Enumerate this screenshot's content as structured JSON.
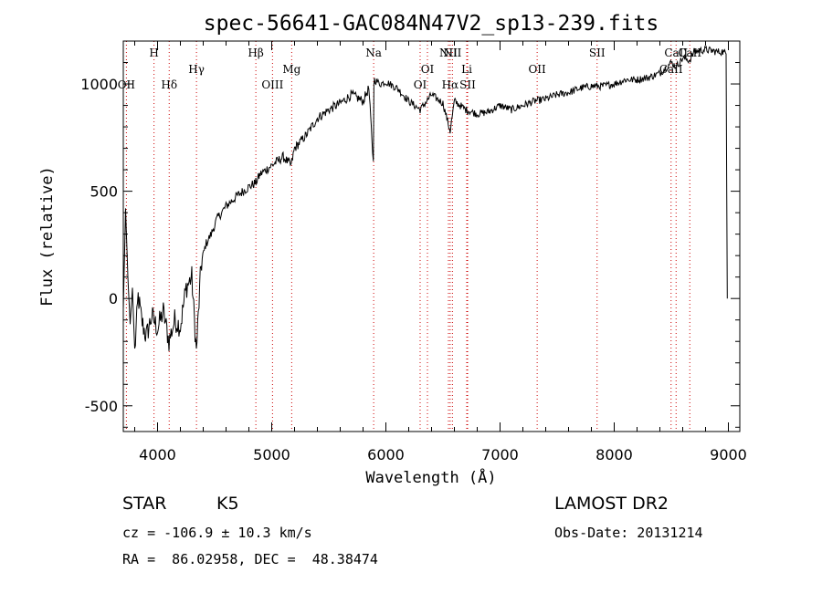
{
  "chart_data": {
    "type": "line",
    "title": "spec-56641-GAC084N47V2_sp13-239.fits",
    "xlabel": "Wavelength (Å)",
    "ylabel": "Flux (relative)",
    "xlim": [
      3700,
      9100
    ],
    "ylim": [
      -620,
      1200
    ],
    "xticks": [
      4000,
      5000,
      6000,
      7000,
      8000,
      9000
    ],
    "xtick_labels": [
      "4000",
      "5000",
      "6000",
      "7000",
      "8000",
      "9000"
    ],
    "yticks": [
      -500,
      0,
      500,
      1000
    ],
    "ytick_labels": [
      "-500",
      "0",
      "500",
      "1000"
    ],
    "grid": false,
    "series": [
      {
        "x": [
          3700,
          3720,
          3740,
          3760,
          3780,
          3800,
          3830,
          3860,
          3900,
          3950,
          4000,
          4050,
          4100,
          4150,
          4200,
          4250,
          4300,
          4340,
          4380,
          4420,
          4470,
          4520,
          4600,
          4700,
          4800,
          4860,
          4900,
          5000,
          5100,
          5170,
          5200,
          5300,
          5400,
          5500,
          5600,
          5700,
          5800,
          5850,
          5890,
          5895,
          5900,
          5950,
          6000,
          6100,
          6200,
          6300,
          6400,
          6500,
          6563,
          6600,
          6700,
          6800,
          6900,
          7000,
          7100,
          7200,
          7300,
          7400,
          7500,
          7600,
          7700,
          7800,
          7900,
          8000,
          8100,
          8200,
          8300,
          8400,
          8500,
          8542,
          8600,
          8662,
          8700,
          8800,
          8900,
          8950,
          8980,
          8990
        ],
        "y": [
          -50,
          420,
          100,
          -120,
          50,
          -250,
          10,
          -100,
          -180,
          -80,
          -140,
          -60,
          -200,
          -100,
          -130,
          50,
          100,
          -250,
          150,
          250,
          300,
          370,
          430,
          480,
          520,
          540,
          580,
          620,
          660,
          620,
          700,
          760,
          840,
          880,
          910,
          950,
          920,
          980,
          640,
          1000,
          1020,
          1000,
          1010,
          980,
          920,
          880,
          950,
          910,
          780,
          920,
          880,
          860,
          870,
          900,
          880,
          900,
          920,
          930,
          950,
          960,
          980,
          990,
          990,
          1000,
          1020,
          1020,
          1030,
          1050,
          1100,
          1080,
          1120,
          1110,
          1150,
          1160,
          1150,
          1150,
          1140,
          0
        ]
      }
    ],
    "lines": [
      {
        "name": "OII",
        "wave": 3727,
        "row": 2
      },
      {
        "name": "H",
        "wave": 3969,
        "row": 0
      },
      {
        "name": "Hδ",
        "wave": 4102,
        "row": 2
      },
      {
        "name": "Hγ",
        "wave": 4341,
        "row": 1
      },
      {
        "name": "Hβ",
        "wave": 4861,
        "row": 0
      },
      {
        "name": "OIII",
        "wave": 5007,
        "row": 2
      },
      {
        "name": "Mg",
        "wave": 5175,
        "row": 1
      },
      {
        "name": "Na",
        "wave": 5893,
        "row": 0
      },
      {
        "name": "OI",
        "wave": 6300,
        "row": 2
      },
      {
        "name": "OI",
        "wave": 6364,
        "row": 1
      },
      {
        "name": "NII",
        "wave": 6548,
        "row": 0
      },
      {
        "name": "Hα",
        "wave": 6563,
        "row": 2
      },
      {
        "name": "NII",
        "wave": 6583,
        "row": 0
      },
      {
        "name": "Li",
        "wave": 6708,
        "row": 1
      },
      {
        "name": "SII",
        "wave": 6716,
        "row": 2
      },
      {
        "name": "OII",
        "wave": 7325,
        "row": 1
      },
      {
        "name": "SII",
        "wave": 7850,
        "row": 0
      },
      {
        "name": "CaII",
        "wave": 8498,
        "row": 1
      },
      {
        "name": "CaII",
        "wave": 8542,
        "row": 0
      },
      {
        "name": "CaII",
        "wave": 8662,
        "row": 0
      }
    ],
    "line_marker_color": "#cc0000"
  },
  "info": {
    "object_class": "STAR",
    "subclass": "K5",
    "survey": "LAMOST DR2",
    "redshift": "cz = -106.9 ± 10.3 km/s",
    "obs_date": "Obs-Date: 20131214",
    "coords": "RA =  86.02958, DEC =  48.38474"
  }
}
